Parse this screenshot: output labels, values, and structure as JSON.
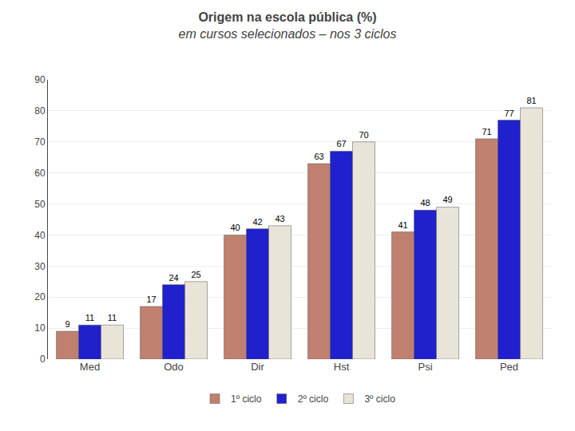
{
  "chart_data": {
    "type": "bar",
    "title": "Origem na escola pública (%)",
    "subtitle": "em cursos selecionados – nos 3 ciclos",
    "categories": [
      "Med",
      "Odo",
      "Dir",
      "Hst",
      "Psi",
      "Ped"
    ],
    "series": [
      {
        "name": "1º ciclo",
        "color": "#c08070",
        "values": [
          9,
          17,
          40,
          63,
          41,
          71
        ]
      },
      {
        "name": "2º ciclo",
        "color": "#2020cc",
        "values": [
          11,
          24,
          42,
          67,
          48,
          77
        ]
      },
      {
        "name": "3º ciclo",
        "color": "#e8e4d8",
        "values": [
          11,
          25,
          43,
          70,
          49,
          81
        ]
      }
    ],
    "ylim": [
      0,
      90
    ],
    "yticks": [
      0,
      10,
      20,
      30,
      40,
      50,
      60,
      70,
      80,
      90
    ],
    "grid": true,
    "legend": "bottom",
    "data_labels": true
  }
}
